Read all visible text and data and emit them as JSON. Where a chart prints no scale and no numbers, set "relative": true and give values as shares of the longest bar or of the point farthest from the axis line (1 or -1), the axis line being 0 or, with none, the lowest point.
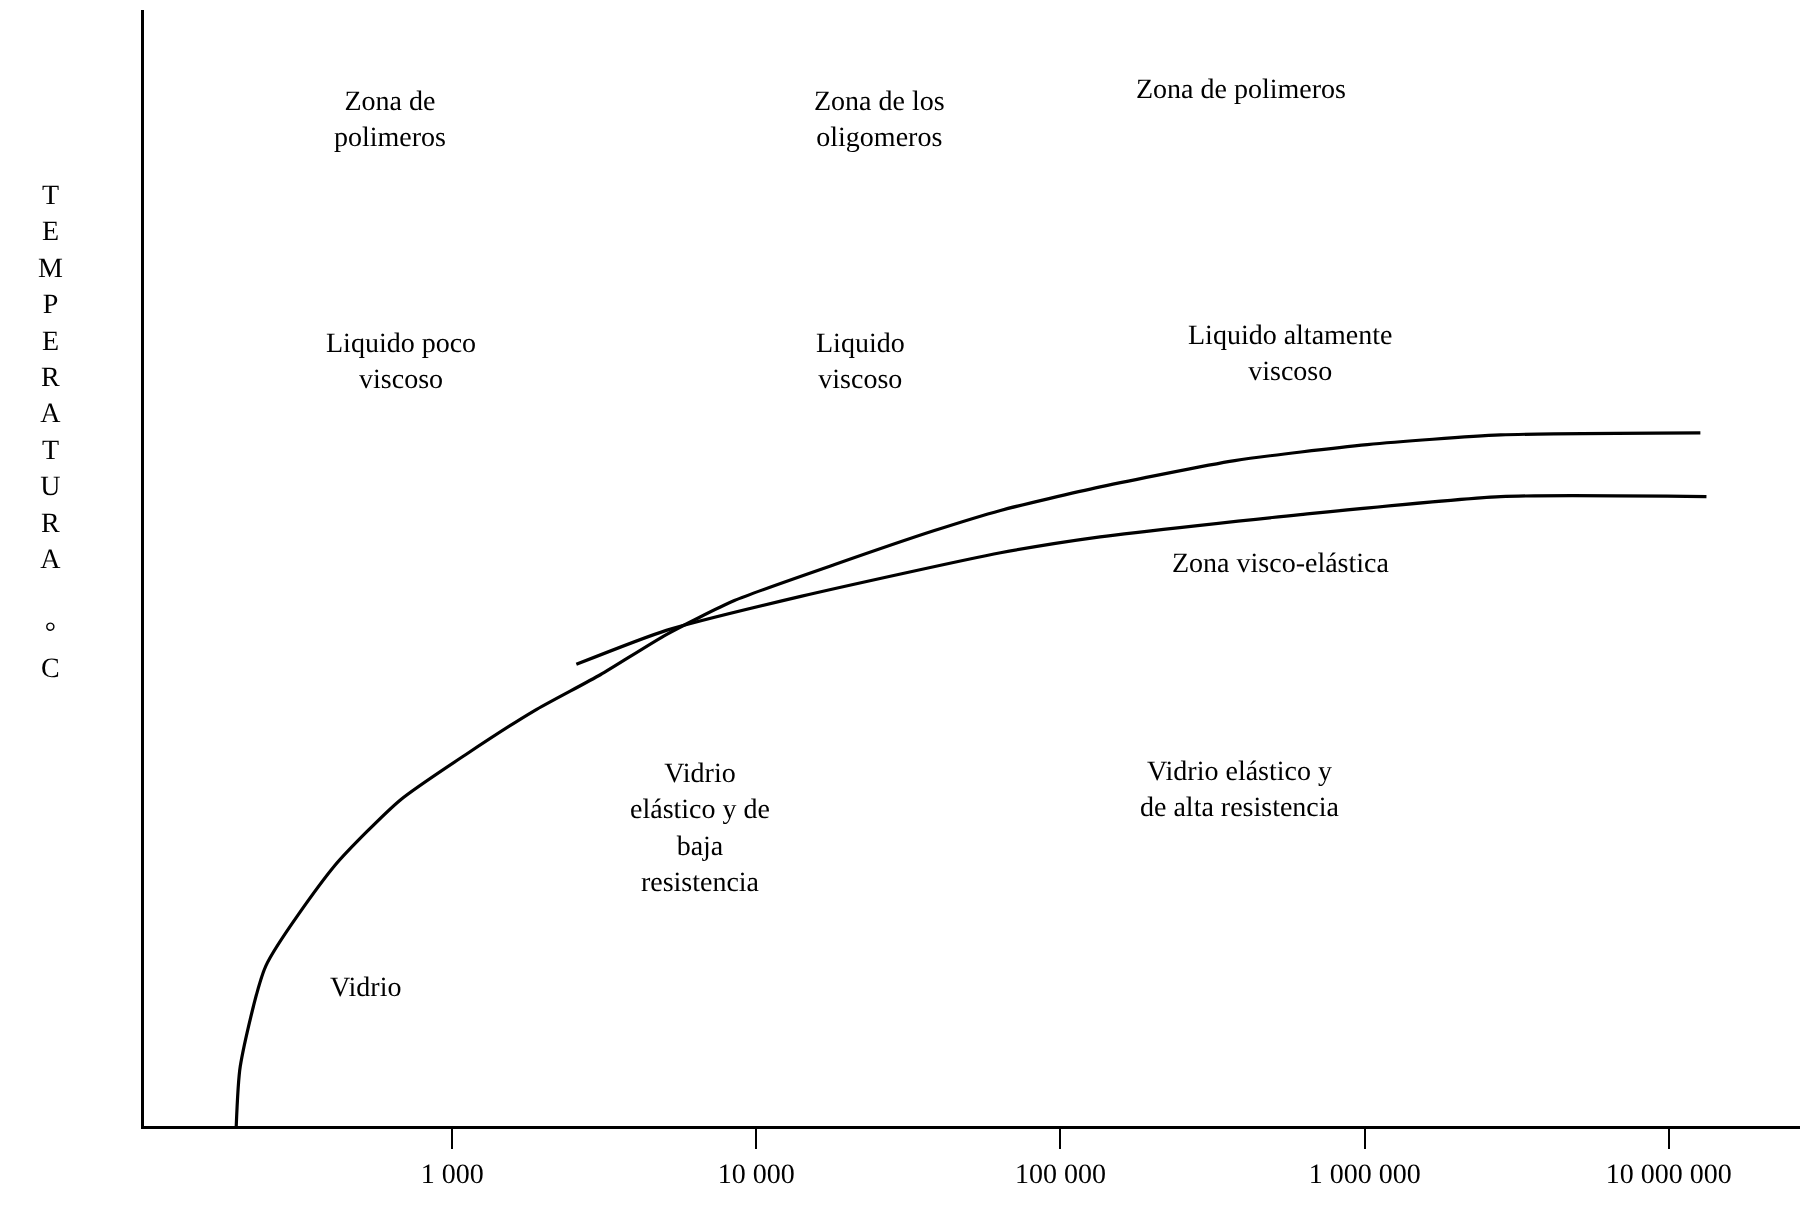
{
  "chart_data": {
    "type": "line",
    "relative": true,
    "log": "x",
    "grid": false,
    "marker": "none",
    "line_style": "solid",
    "ylabel": "TEMPERATURA °C",
    "xlim": [
      97,
      27000000
    ],
    "xticks": [
      {
        "value": 1000,
        "label": "1 000"
      },
      {
        "value": 10000,
        "label": "10 000"
      },
      {
        "value": 100000,
        "label": "100 000"
      },
      {
        "value": 1000000,
        "label": "1 000 000"
      },
      {
        "value": 10000000,
        "label": "10 000 000"
      }
    ],
    "tick_labels": "x",
    "series": [
      {
        "color": "#000000",
        "x": [
          195,
          201,
          244,
          410,
          674,
          1110,
          1860,
          3070,
          5060,
          8470,
          18100,
          38500,
          63500,
          135000,
          374000,
          1020000,
          2800000,
          12700000
        ],
        "values": [
          0,
          0.086,
          0.231,
          0.375,
          0.47,
          0.536,
          0.599,
          0.651,
          0.709,
          0.758,
          0.81,
          0.859,
          0.888,
          0.922,
          0.96,
          0.983,
          0.997,
          1
        ]
      },
      {
        "color": "#000000",
        "x": [
          2560,
          5060,
          14000,
          63500,
          135000,
          615000,
          2800000,
          13300000
        ],
        "values": [
          0.666,
          0.715,
          0.764,
          0.827,
          0.85,
          0.882,
          0.908,
          0.908
        ]
      }
    ],
    "annotations": [
      "Zona de\npolimeros",
      "Zona de los\noligomeros",
      "Zona de polimeros",
      "Liquido poco\nviscoso",
      "Liquido\nviscoso",
      "Liquido altamente\nviscoso",
      "Zona visco-elástica",
      "Vidrio\nelástico y de\nbaja\nresistencia",
      "Vidrio elástico y\nde alta resistencia",
      "Vidrio"
    ]
  }
}
